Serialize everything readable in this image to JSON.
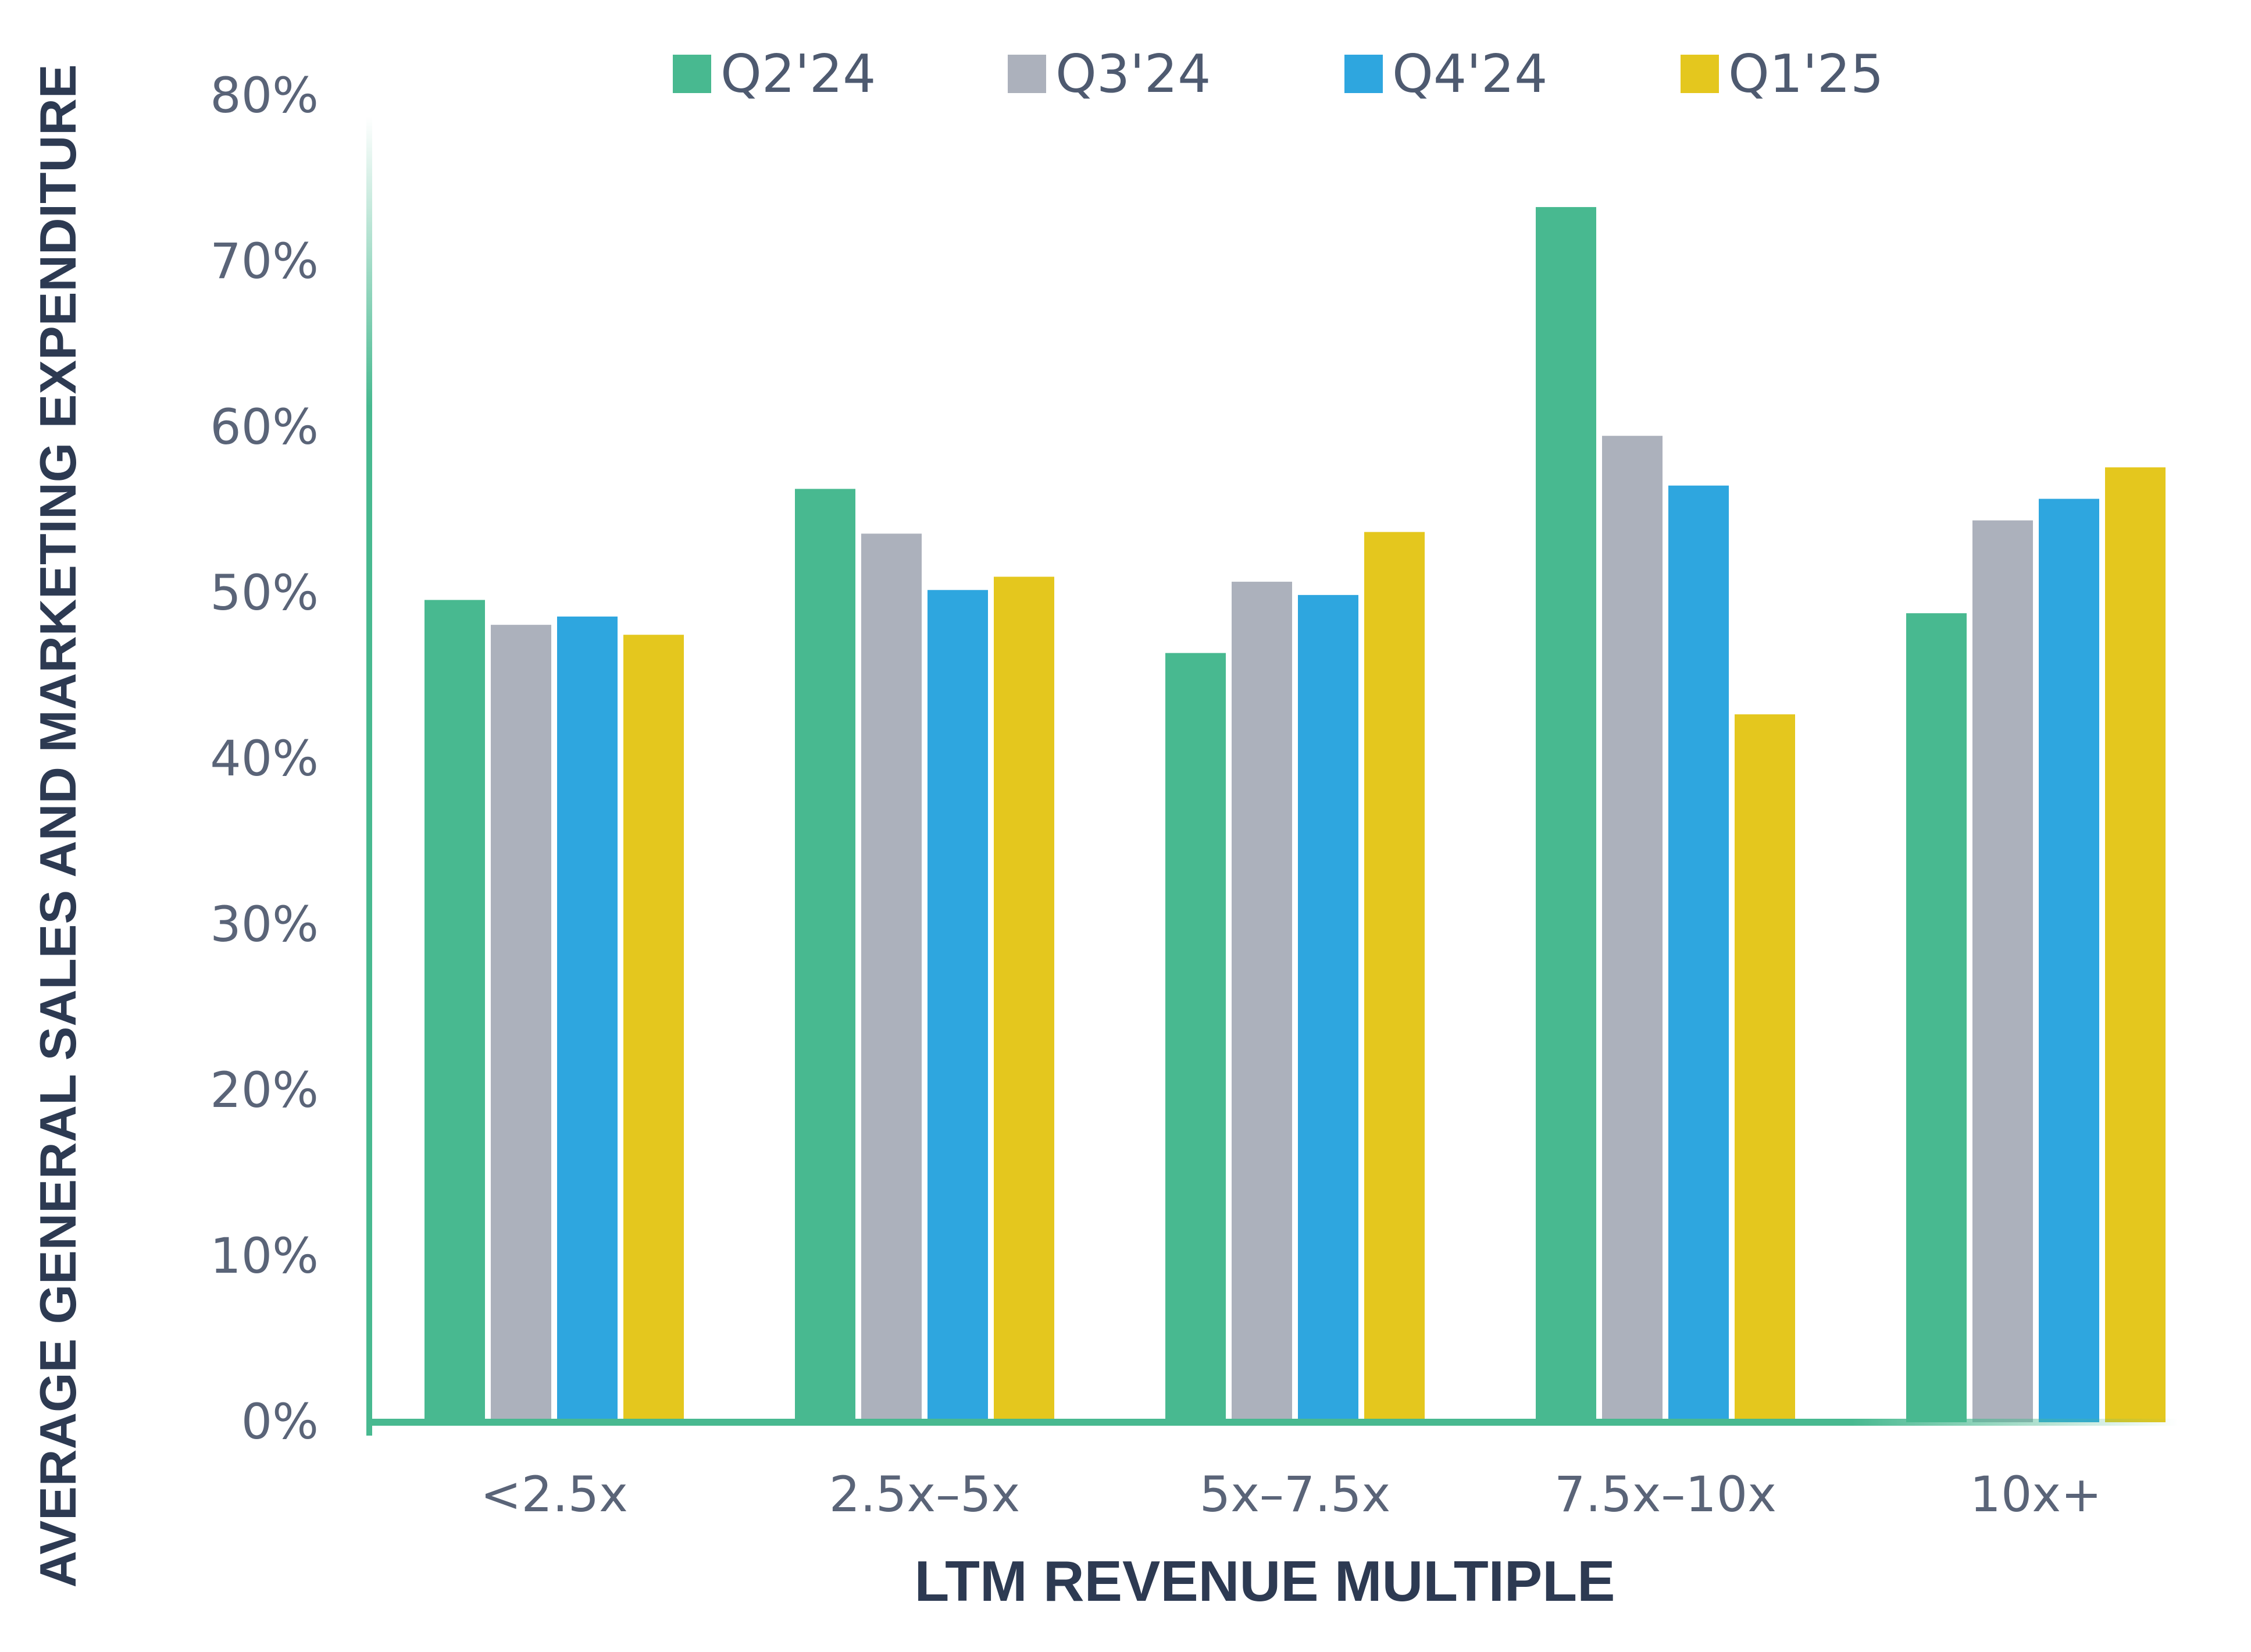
{
  "chart_data": {
    "type": "bar",
    "categories": [
      "<2.5x",
      "2.5x–5x",
      "5x–7.5x",
      "7.5x–10x",
      "10x+"
    ],
    "series": [
      {
        "name": "Q2'24",
        "color": "#48b990",
        "values": [
          49.6,
          56.3,
          46.4,
          73.3,
          48.8
        ]
      },
      {
        "name": "Q3'24",
        "color": "#acb1bc",
        "values": [
          48.1,
          53.6,
          50.7,
          59.5,
          54.4
        ]
      },
      {
        "name": "Q4'24",
        "color": "#2ea6df",
        "values": [
          48.6,
          50.2,
          49.9,
          56.5,
          55.7
        ]
      },
      {
        "name": "Q1'25",
        "color": "#e4c71e",
        "values": [
          47.5,
          51.0,
          53.7,
          42.7,
          57.6
        ]
      }
    ],
    "xlabel": "LTM REVENUE MULTIPLE",
    "ylabel": "AVERAGE GENERAL SALES AND MARKETING EXPENDITURE",
    "yticks": [
      "0%",
      "10%",
      "20%",
      "30%",
      "40%",
      "50%",
      "60%",
      "70%",
      "80%"
    ],
    "ylim": [
      0,
      80
    ],
    "grid": false,
    "legend": "top",
    "axis_color": "#48b990"
  }
}
